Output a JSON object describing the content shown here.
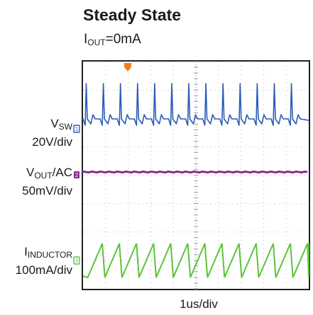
{
  "title": "Steady State",
  "condition": {
    "prefix": "I",
    "sub": "OUT",
    "suffix": "=0mA"
  },
  "chart_data": {
    "type": "line",
    "title": "Steady State",
    "xlabel": "1us/div",
    "grid": true,
    "trigger_marker_color": "#e8821e",
    "channels": [
      {
        "name_main": "V",
        "name_sub": "SW",
        "name_suffix": "",
        "scale": "20V/div",
        "marker": "1",
        "color": "#2a5cb8",
        "waveform": "switching pulses"
      },
      {
        "name_main": "V",
        "name_sub": "OUT",
        "name_suffix": "/AC",
        "scale": "50mV/div",
        "marker": "2",
        "color": "#8a2d8e",
        "waveform": "flat"
      },
      {
        "name_main": "I",
        "name_sub": "INDUCTOR",
        "name_suffix": "",
        "scale": "100mA/div",
        "marker": "3",
        "color": "#5cc43a",
        "waveform": "triangle ripple"
      }
    ]
  }
}
